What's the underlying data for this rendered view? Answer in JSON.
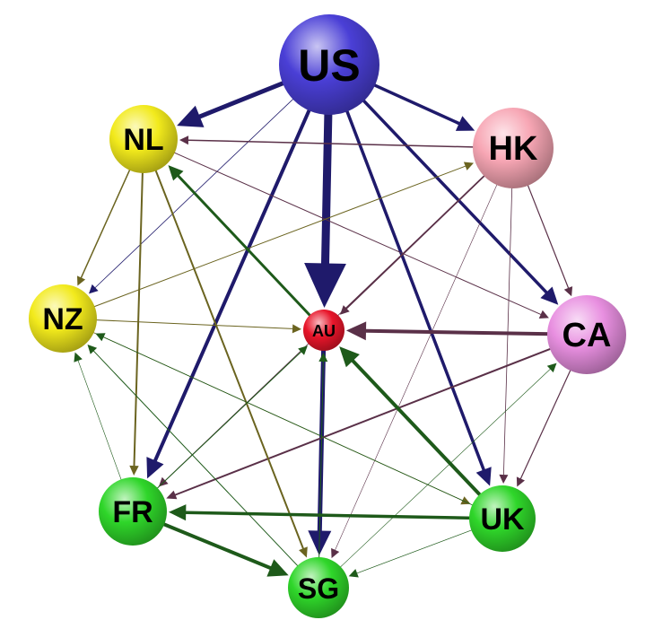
{
  "nodes": [
    {
      "id": "US",
      "label": "US",
      "color": "#4a3fd6"
    },
    {
      "id": "NL",
      "label": "NL",
      "color": "#f2ea1c"
    },
    {
      "id": "HK",
      "label": "HK",
      "color": "#f7a6b4"
    },
    {
      "id": "NZ",
      "label": "NZ",
      "color": "#f2ea1c"
    },
    {
      "id": "AU",
      "label": "AU",
      "color": "#e8152a"
    },
    {
      "id": "CA",
      "label": "CA",
      "color": "#e88fe0"
    },
    {
      "id": "FR",
      "label": "FR",
      "color": "#2fd62a"
    },
    {
      "id": "UK",
      "label": "UK",
      "color": "#2fd62a"
    },
    {
      "id": "SG",
      "label": "SG",
      "color": "#2fd62a"
    }
  ],
  "edges": [
    {
      "from": "US",
      "to": "AU",
      "weight": 9,
      "color": "#1f1a6b"
    },
    {
      "from": "US",
      "to": "NL",
      "weight": 5,
      "color": "#1f1a6b"
    },
    {
      "from": "US",
      "to": "HK",
      "weight": 3.5,
      "color": "#1f1a6b"
    },
    {
      "from": "US",
      "to": "CA",
      "weight": 3.5,
      "color": "#1f1a6b"
    },
    {
      "from": "US",
      "to": "UK",
      "weight": 3.5,
      "color": "#1f1a6b"
    },
    {
      "from": "US",
      "to": "FR",
      "weight": 4,
      "color": "#1f1a6b"
    },
    {
      "from": "US",
      "to": "NZ",
      "weight": 0.8,
      "color": "#1f1a6b"
    },
    {
      "from": "AU",
      "to": "SG",
      "weight": 5,
      "color": "#1f1a6b"
    },
    {
      "from": "CA",
      "to": "AU",
      "weight": 4,
      "color": "#5a3048"
    },
    {
      "from": "CA",
      "to": "FR",
      "weight": 2,
      "color": "#5a3048"
    },
    {
      "from": "CA",
      "to": "UK",
      "weight": 1.2,
      "color": "#5a3048"
    },
    {
      "from": "HK",
      "to": "NL",
      "weight": 1.5,
      "color": "#5a3048"
    },
    {
      "from": "HK",
      "to": "AU",
      "weight": 1.8,
      "color": "#5a3048"
    },
    {
      "from": "HK",
      "to": "CA",
      "weight": 1.2,
      "color": "#5a3048"
    },
    {
      "from": "HK",
      "to": "UK",
      "weight": 0.8,
      "color": "#5a3048"
    },
    {
      "from": "HK",
      "to": "FR",
      "weight": 0.8,
      "color": "#5a3048"
    },
    {
      "from": "HK",
      "to": "SG",
      "weight": 0.6,
      "color": "#5a3048"
    },
    {
      "from": "NL",
      "to": "CA",
      "weight": 1,
      "color": "#5a3048"
    },
    {
      "from": "NL",
      "to": "NZ",
      "weight": 1.5,
      "color": "#6b6420"
    },
    {
      "from": "NL",
      "to": "FR",
      "weight": 2,
      "color": "#6b6420"
    },
    {
      "from": "NL",
      "to": "SG",
      "weight": 2,
      "color": "#6b6420"
    },
    {
      "from": "NZ",
      "to": "HK",
      "weight": 1,
      "color": "#6b6420"
    },
    {
      "from": "NZ",
      "to": "AU",
      "weight": 1,
      "color": "#6b6420"
    },
    {
      "from": "NZ",
      "to": "UK",
      "weight": 0.8,
      "color": "#6b6420"
    },
    {
      "from": "UK",
      "to": "AU",
      "weight": 4,
      "color": "#1e5a1a"
    },
    {
      "from": "UK",
      "to": "FR",
      "weight": 3.5,
      "color": "#1e5a1a"
    },
    {
      "from": "UK",
      "to": "NZ",
      "weight": 0.8,
      "color": "#1e5a1a"
    },
    {
      "from": "UK",
      "to": "SG",
      "weight": 0.7,
      "color": "#1e5a1a"
    },
    {
      "from": "AU",
      "to": "NL",
      "weight": 3,
      "color": "#1e5a1a"
    },
    {
      "from": "FR",
      "to": "SG",
      "weight": 4,
      "color": "#1e5a1a"
    },
    {
      "from": "FR",
      "to": "AU",
      "weight": 1,
      "color": "#1e5a1a"
    },
    {
      "from": "FR",
      "to": "NZ",
      "weight": 0.6,
      "color": "#1e5a1a"
    },
    {
      "from": "SG",
      "to": "NZ",
      "weight": 1,
      "color": "#1e5a1a"
    },
    {
      "from": "SG",
      "to": "AU",
      "weight": 1,
      "color": "#1e5a1a"
    },
    {
      "from": "SG",
      "to": "CA",
      "weight": 0.6,
      "color": "#1e5a1a"
    }
  ]
}
